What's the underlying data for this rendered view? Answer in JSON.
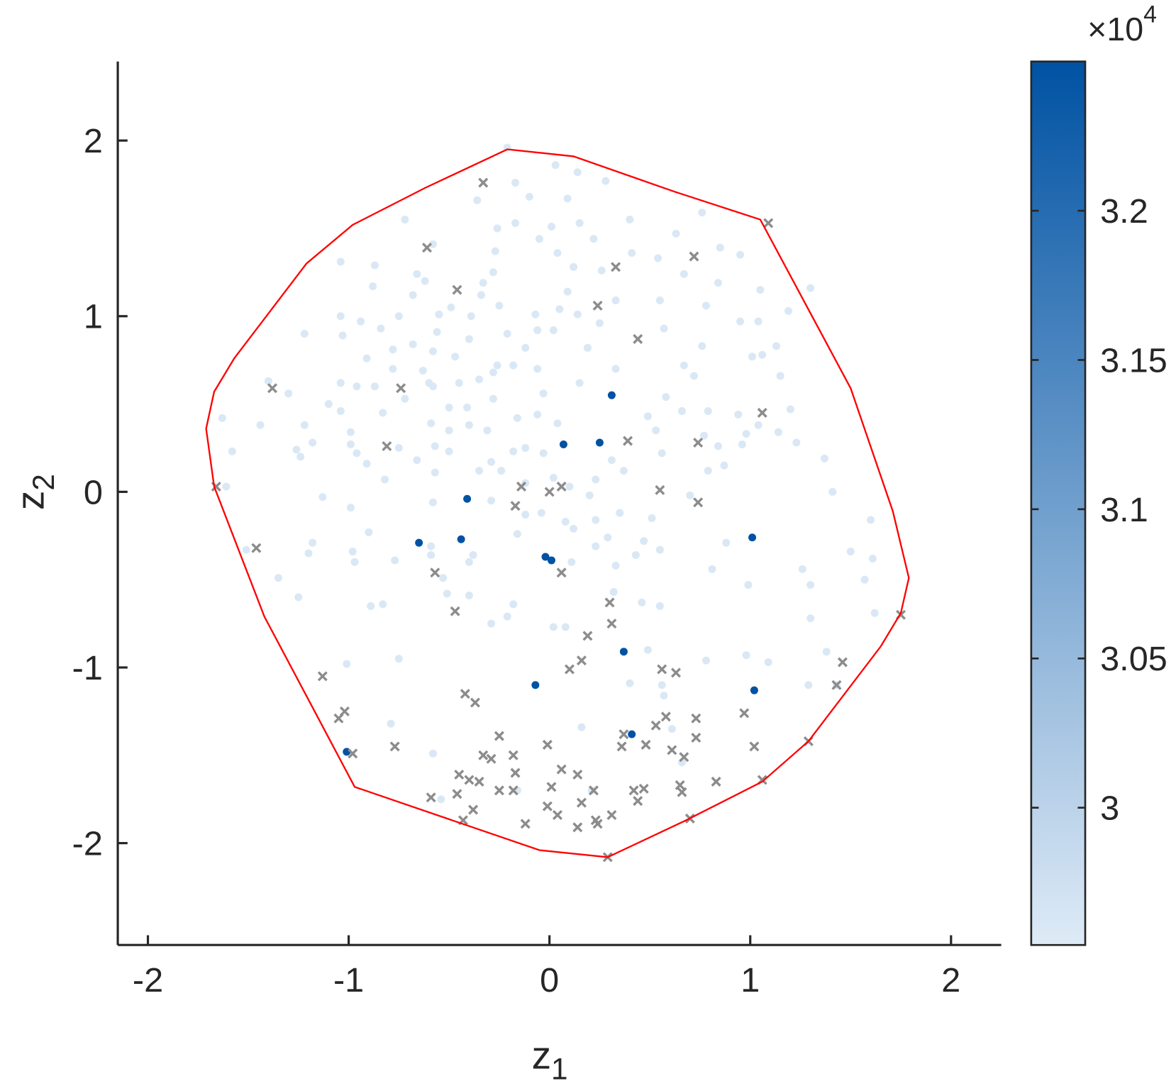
{
  "chart_data": {
    "type": "scatter",
    "xlabel": "z",
    "xlabel_sub": "1",
    "ylabel": "z",
    "ylabel_sub": "2",
    "xlim": [
      -2.15,
      2.25
    ],
    "ylim": [
      -2.58,
      2.45
    ],
    "xticks": [
      -2,
      -1,
      0,
      1,
      2
    ],
    "yticks": [
      -2,
      -1,
      0,
      1,
      2
    ],
    "hull": {
      "color": "#ff0000",
      "x": [
        -0.21,
        0.12,
        0.62,
        1.05,
        1.5,
        1.71,
        1.79,
        1.75,
        1.65,
        1.29,
        1.06,
        0.68,
        0.29,
        -0.05,
        -0.97,
        -1.42,
        -1.67,
        -1.71,
        -1.67,
        -1.57,
        -1.21,
        -0.98,
        -0.62
      ],
      "y": [
        1.95,
        1.91,
        1.71,
        1.55,
        0.59,
        -0.11,
        -0.49,
        -0.69,
        -0.88,
        -1.42,
        -1.65,
        -1.87,
        -2.08,
        -2.04,
        -1.68,
        -0.71,
        0.03,
        0.36,
        0.57,
        0.76,
        1.3,
        1.52,
        1.73
      ]
    },
    "series": [
      {
        "marker": "dot",
        "color_value": 2.96,
        "x": [
          -0.21,
          0.03,
          0.14,
          -0.17,
          0.28,
          -0.36,
          -0.1,
          0.09,
          0.76,
          -0.72,
          -0.17,
          0.01,
          0.15,
          0.4,
          0.63,
          -0.26,
          -0.05,
          0.22,
          -0.58,
          -0.27,
          0.04,
          0.41,
          0.85,
          0.95,
          -1.04,
          -0.87,
          0.54,
          0.12,
          0.26,
          -0.66,
          -0.28,
          0.67,
          -0.88,
          -0.62,
          -0.33,
          0.84,
          1.05,
          1.3,
          -0.68,
          -0.49,
          -0.34,
          0.09,
          0.33,
          0.55,
          -0.25,
          0.05,
          0.78,
          1.19,
          -1.04,
          -0.94,
          -0.75,
          -0.55,
          -0.39,
          -0.07,
          0.14,
          0.25,
          0.95,
          1.04,
          -1.22,
          -0.84,
          -0.56,
          -0.21,
          -0.06,
          0.02,
          0.57,
          -1.03,
          -0.68,
          -0.4,
          -0.12,
          0.19,
          0.76,
          1.13,
          -0.78,
          -0.58,
          -0.47,
          -0.91,
          1.01,
          1.06,
          -0.26,
          -0.18,
          0.67,
          0.33,
          -0.78,
          -0.63,
          -0.28,
          -0.06,
          1.15,
          0.72,
          -1.4,
          -1.04,
          -0.6,
          -0.45,
          -0.35,
          0.15,
          -1.3,
          -0.96,
          -0.87,
          -0.58,
          -0.03,
          0.58,
          -1.1,
          -0.72,
          -0.28,
          -1.04,
          -0.5,
          -0.41,
          0.66,
          0.79,
          0.94,
          1.2,
          -1.63,
          -0.83,
          -0.16,
          -0.06,
          0.49,
          -1.44,
          -1.22,
          -0.59,
          -0.4,
          0.04,
          1.04,
          -0.99,
          -0.5,
          -0.31,
          0.53,
          1.14,
          0.77,
          0.98,
          1.23,
          -1.18,
          -0.99,
          -0.75,
          -0.57,
          -0.12,
          0.84,
          0.96,
          -1.58,
          -1.26,
          -0.96,
          -0.5,
          -0.18,
          -0.03,
          0.56,
          1.37,
          -1.24,
          -0.91,
          -0.66,
          -0.29,
          0.31,
          0.87,
          -0.35,
          0.37,
          0.79,
          -0.82,
          -0.57,
          -0.24,
          0.02,
          0.23,
          -0.12,
          -1.61,
          -1.13,
          -0.99,
          1.41,
          0.1,
          0.2,
          0.7,
          -0.58,
          -0.29,
          -0.04,
          0.35,
          -0.12,
          0.51,
          1.6,
          0.08,
          0.12,
          0.23,
          -0.9,
          -0.16,
          0.29,
          0.47,
          -1.18,
          -0.59,
          0.23,
          0.88,
          0.55,
          1.5,
          -1.2,
          -1.51,
          -0.98,
          1.61,
          -0.38,
          0.43,
          -0.59,
          -0.97,
          -0.77,
          -0.4,
          0.11,
          0.33,
          0.81,
          1.26,
          -1.35,
          -0.53,
          1.57,
          1.3,
          0.99,
          0.32,
          -1.25,
          -0.51,
          -0.4,
          -0.89,
          -0.83,
          -0.18,
          0.46,
          0.55,
          1.62,
          1.3,
          -0.21,
          -0.29,
          0.02,
          0.08,
          1.38,
          -0.75,
          0.49,
          0.78,
          0.98,
          1.09,
          -1.01,
          0.4,
          0.56,
          1.29,
          1.43,
          0.16,
          -0.79,
          0.61,
          -0.58,
          0.66,
          0.21,
          -0.16,
          -0.54,
          0.57
        ],
        "y": [
          1.96,
          1.86,
          1.82,
          1.76,
          1.77,
          1.66,
          1.68,
          1.67,
          1.59,
          1.55,
          1.53,
          1.51,
          1.53,
          1.55,
          1.47,
          1.5,
          1.44,
          1.44,
          1.41,
          1.37,
          1.36,
          1.36,
          1.39,
          1.35,
          1.31,
          1.29,
          1.33,
          1.28,
          1.26,
          1.24,
          1.25,
          1.24,
          1.17,
          1.2,
          1.19,
          1.19,
          1.15,
          1.16,
          1.12,
          1.05,
          1.12,
          1.14,
          1.09,
          1.09,
          1.06,
          1.04,
          1.06,
          1.03,
          1,
          0.97,
          1,
          1.01,
          1,
          1.01,
          1.01,
          0.96,
          0.97,
          0.97,
          0.9,
          0.93,
          0.91,
          0.9,
          0.92,
          0.92,
          0.93,
          0.89,
          0.84,
          0.87,
          0.82,
          0.82,
          0.83,
          0.83,
          0.81,
          0.8,
          0.77,
          0.76,
          0.77,
          0.78,
          0.72,
          0.72,
          0.72,
          0.7,
          0.7,
          0.69,
          0.68,
          0.7,
          0.66,
          0.66,
          0.63,
          0.62,
          0.62,
          0.62,
          0.64,
          0.62,
          0.56,
          0.6,
          0.6,
          0.6,
          0.56,
          0.54,
          0.5,
          0.53,
          0.53,
          0.46,
          0.48,
          0.48,
          0.46,
          0.46,
          0.44,
          0.47,
          0.42,
          0.45,
          0.42,
          0.44,
          0.43,
          0.38,
          0.38,
          0.39,
          0.38,
          0.39,
          0.38,
          0.34,
          0.35,
          0.35,
          0.35,
          0.34,
          0.32,
          0.33,
          0.28,
          0.28,
          0.27,
          0.25,
          0.26,
          0.25,
          0.26,
          0.27,
          0.23,
          0.24,
          0.22,
          0.23,
          0.23,
          0.22,
          0.22,
          0.19,
          0.2,
          0.16,
          0.18,
          0.17,
          0.18,
          0.15,
          0.12,
          0.12,
          0.12,
          0.07,
          0.11,
          0.12,
          0.08,
          0.07,
          0.05,
          0.03,
          -0.03,
          -0.09,
          0,
          0.03,
          -0.02,
          -0.02,
          -0.06,
          -0.05,
          -0.12,
          -0.12,
          -0.13,
          -0.15,
          -0.16,
          -0.17,
          -0.21,
          -0.16,
          -0.23,
          -0.24,
          -0.26,
          -0.28,
          -0.29,
          -0.31,
          -0.31,
          -0.29,
          -0.33,
          -0.34,
          -0.35,
          -0.33,
          -0.34,
          -0.38,
          -0.36,
          -0.36,
          -0.36,
          -0.4,
          -0.39,
          -0.4,
          -0.4,
          -0.42,
          -0.44,
          -0.44,
          -0.49,
          -0.49,
          -0.5,
          -0.53,
          -0.53,
          -0.57,
          -0.6,
          -0.58,
          -0.59,
          -0.65,
          -0.64,
          -0.64,
          -0.63,
          -0.65,
          -0.69,
          -0.72,
          -0.71,
          -0.75,
          -0.77,
          -0.77,
          -0.91,
          -0.95,
          -0.9,
          -0.96,
          -0.93,
          -0.97,
          -0.98,
          -1.09,
          -1.1,
          -1.1,
          -1.1,
          -1.34,
          -1.32,
          -1.35,
          -1.49,
          -1.54,
          -1.7,
          -1.7,
          -1.75,
          -1.16
        ]
      },
      {
        "marker": "dot",
        "color_value": 3.25,
        "x": [
          0.31,
          0.07,
          0.25,
          -0.41,
          -0.44,
          -0.65,
          -0.02,
          0.01,
          1.01,
          0.37,
          -0.07,
          1.02,
          0.41,
          -1.01
        ],
        "y": [
          0.55,
          0.27,
          0.28,
          -0.04,
          -0.27,
          -0.29,
          -0.37,
          -0.39,
          -0.26,
          -0.91,
          -1.1,
          -1.13,
          -1.38,
          -1.48
        ]
      },
      {
        "marker": "x",
        "color": "#8c8c8c",
        "x": [
          -0.33,
          -0.61,
          -0.46,
          0.72,
          0.33,
          0.24,
          0.44,
          -1.38,
          -0.74,
          1.06,
          -0.81,
          0.39,
          0.74,
          -1.66,
          -0.14,
          0.06,
          0,
          0.55,
          -0.17,
          0.74,
          -1.46,
          -0.57,
          0.06,
          -0.47,
          0.3,
          0.31,
          0.19,
          0.1,
          -1.13,
          0.16,
          1.46,
          0.56,
          0.63,
          -0.42,
          -0.37,
          1.43,
          -1.02,
          -1.05,
          0.97,
          0.58,
          0.53,
          0.73,
          0.37,
          0.73,
          -0.25,
          0.36,
          0.48,
          -0.98,
          -0.77,
          -0.01,
          1.02,
          1.29,
          -0.33,
          0.61,
          0.67,
          -0.29,
          -0.18,
          -0.45,
          0.06,
          -0.17,
          0.14,
          -0.4,
          -0.35,
          -0.25,
          -0.46,
          -0.18,
          0.01,
          0.22,
          0.42,
          0.47,
          0.83,
          0.65,
          0.66,
          -0.59,
          0.16,
          0.44,
          1.06,
          -0.01,
          -0.38,
          0.04,
          0.31,
          -0.43,
          -0.12,
          0.23,
          0.24,
          0.14,
          0.7,
          0.29,
          1.75,
          1.09
        ],
        "y": [
          1.76,
          1.39,
          1.15,
          1.34,
          1.28,
          1.06,
          0.87,
          0.59,
          0.59,
          0.45,
          0.26,
          0.29,
          0.28,
          0.03,
          0.03,
          0.03,
          0,
          0.01,
          -0.08,
          -0.06,
          -0.32,
          -0.46,
          -0.46,
          -0.68,
          -0.63,
          -0.75,
          -0.82,
          -1.01,
          -1.05,
          -0.96,
          -0.97,
          -1.01,
          -1.03,
          -1.15,
          -1.2,
          -1.1,
          -1.25,
          -1.29,
          -1.26,
          -1.28,
          -1.33,
          -1.29,
          -1.38,
          -1.4,
          -1.39,
          -1.45,
          -1.44,
          -1.49,
          -1.45,
          -1.44,
          -1.45,
          -1.42,
          -1.5,
          -1.47,
          -1.51,
          -1.52,
          -1.5,
          -1.61,
          -1.58,
          -1.6,
          -1.61,
          -1.64,
          -1.65,
          -1.7,
          -1.72,
          -1.7,
          -1.68,
          -1.7,
          -1.7,
          -1.69,
          -1.65,
          -1.67,
          -1.71,
          -1.74,
          -1.77,
          -1.76,
          -1.64,
          -1.79,
          -1.81,
          -1.84,
          -1.84,
          -1.87,
          -1.89,
          -1.87,
          -1.89,
          -1.91,
          -1.86,
          -2.08,
          -0.7,
          1.53
        ]
      }
    ],
    "colorbar": {
      "clim": [
        2.954,
        3.25
      ],
      "ticks": [
        3,
        3.05,
        3.1,
        3.15,
        3.2
      ],
      "colors": [
        "#deebf7",
        "#0052a3"
      ],
      "multiplier": "×10",
      "exponent": "4"
    }
  }
}
